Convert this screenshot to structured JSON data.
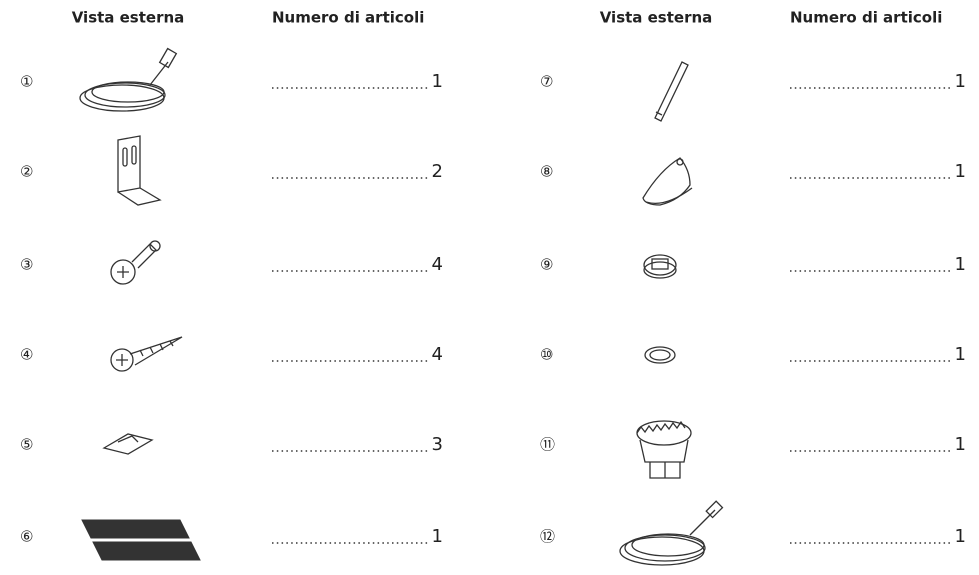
{
  "columns": [
    {
      "header_view": "Vista esterna",
      "header_qty": "Numero di articoli",
      "items": [
        {
          "number": "①",
          "quantity": 1
        },
        {
          "number": "②",
          "quantity": 2
        },
        {
          "number": "③",
          "quantity": 4
        },
        {
          "number": "④",
          "quantity": 4
        },
        {
          "number": "⑤",
          "quantity": 3
        },
        {
          "number": "⑥",
          "quantity": 1
        }
      ]
    },
    {
      "header_view": "Vista esterna",
      "header_qty": "Numero di articoli",
      "items": [
        {
          "number": "⑦",
          "quantity": 1
        },
        {
          "number": "⑧",
          "quantity": 1
        },
        {
          "number": "⑨",
          "quantity": 1
        },
        {
          "number": "⑩",
          "quantity": 1
        },
        {
          "number": "⑪",
          "quantity": 1
        },
        {
          "number": "⑫",
          "quantity": 1
        }
      ]
    }
  ]
}
